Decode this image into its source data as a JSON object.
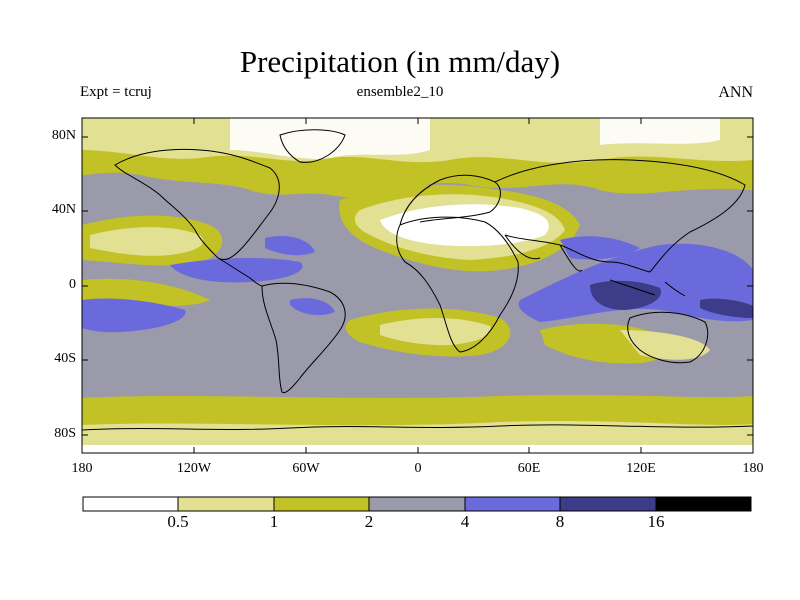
{
  "title": "Precipitation (in mm/day)",
  "experiment": "Expt = tcruj",
  "ensemble": "ensemble2_10",
  "period": "ANN",
  "lat_labels": [
    "80N",
    "40N",
    "0",
    "40S",
    "80S"
  ],
  "lon_labels": [
    "180",
    "120W",
    "60W",
    "0",
    "60E",
    "120E",
    "180"
  ],
  "colorbar": {
    "levels": [
      "0.5",
      "1",
      "2",
      "4",
      "8",
      "16"
    ],
    "colors": [
      "#ffffff",
      "#e2e092",
      "#c2c226",
      "#9a9aaa",
      "#6a6add",
      "#3c3c88",
      "#000000"
    ]
  }
}
